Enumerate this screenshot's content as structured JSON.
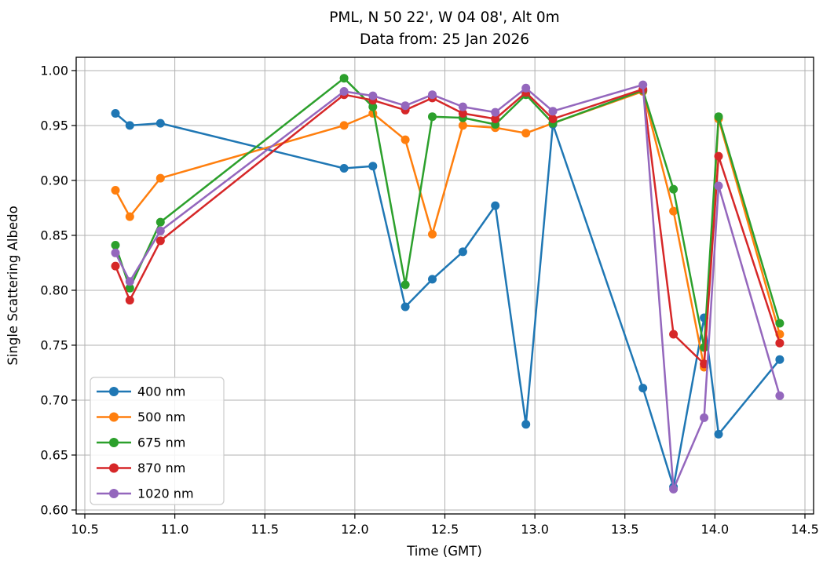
{
  "figure": {
    "title_line1": "PML, N 50 22', W 04 08', Alt 0m",
    "title_line2": "Data from: 25 Jan 2026"
  },
  "chart_data": {
    "type": "line",
    "title": "PML, N 50 22', W 04 08', Alt 0m",
    "subtitle": "Data from: 25 Jan 2026",
    "xlabel": "Time (GMT)",
    "ylabel": "Single Scattering Albedo",
    "xlim": [
      10.452,
      14.548
    ],
    "ylim": [
      0.5964,
      1.0121
    ],
    "grid": true,
    "grid_color": "#b0b0b0",
    "spine_color": "#000000",
    "legend_position": "lower left",
    "marker": "o",
    "x_ticks": {
      "values": [
        10.5,
        11.0,
        11.5,
        12.0,
        12.5,
        13.0,
        13.5,
        14.0,
        14.5
      ],
      "labels": [
        "10.5",
        "11.0",
        "11.5",
        "12.0",
        "12.5",
        "13.0",
        "13.5",
        "14.0",
        "14.5"
      ]
    },
    "y_ticks": {
      "values": [
        0.6,
        0.65,
        0.7,
        0.75,
        0.8,
        0.85,
        0.9,
        0.95,
        1.0
      ],
      "labels": [
        "0.60",
        "0.65",
        "0.70",
        "0.75",
        "0.80",
        "0.85",
        "0.90",
        "0.95",
        "1.00"
      ]
    },
    "x": [
      10.67,
      10.75,
      10.92,
      11.94,
      12.1,
      12.28,
      12.43,
      12.6,
      12.78,
      12.95,
      13.1,
      13.6,
      13.77,
      13.94,
      14.02,
      14.36
    ],
    "series": [
      {
        "name": "400 nm",
        "color": "#1f77b4",
        "values": [
          0.961,
          0.95,
          0.952,
          0.911,
          0.913,
          0.785,
          0.81,
          0.835,
          0.877,
          0.678,
          0.951,
          0.711,
          0.621,
          0.775,
          0.669,
          0.737
        ]
      },
      {
        "name": "500 nm",
        "color": "#ff7f0e",
        "values": [
          0.891,
          0.867,
          0.902,
          0.95,
          0.961,
          0.937,
          0.851,
          0.95,
          0.948,
          0.943,
          0.952,
          0.981,
          0.872,
          0.73,
          0.956,
          0.76
        ]
      },
      {
        "name": "675 nm",
        "color": "#2ca02c",
        "values": [
          0.841,
          0.802,
          0.862,
          0.993,
          0.967,
          0.805,
          0.958,
          0.957,
          0.951,
          0.978,
          0.952,
          0.982,
          0.892,
          0.748,
          0.958,
          0.77
        ]
      },
      {
        "name": "870 nm",
        "color": "#d62728",
        "values": [
          0.822,
          0.791,
          0.845,
          0.978,
          0.973,
          0.964,
          0.975,
          0.961,
          0.956,
          0.98,
          0.956,
          0.983,
          0.76,
          0.733,
          0.922,
          0.752
        ]
      },
      {
        "name": "1020 nm",
        "color": "#9467bd",
        "values": [
          0.834,
          0.808,
          0.854,
          0.981,
          0.977,
          0.968,
          0.978,
          0.967,
          0.962,
          0.984,
          0.963,
          0.987,
          0.619,
          0.684,
          0.895,
          0.704
        ]
      }
    ]
  }
}
